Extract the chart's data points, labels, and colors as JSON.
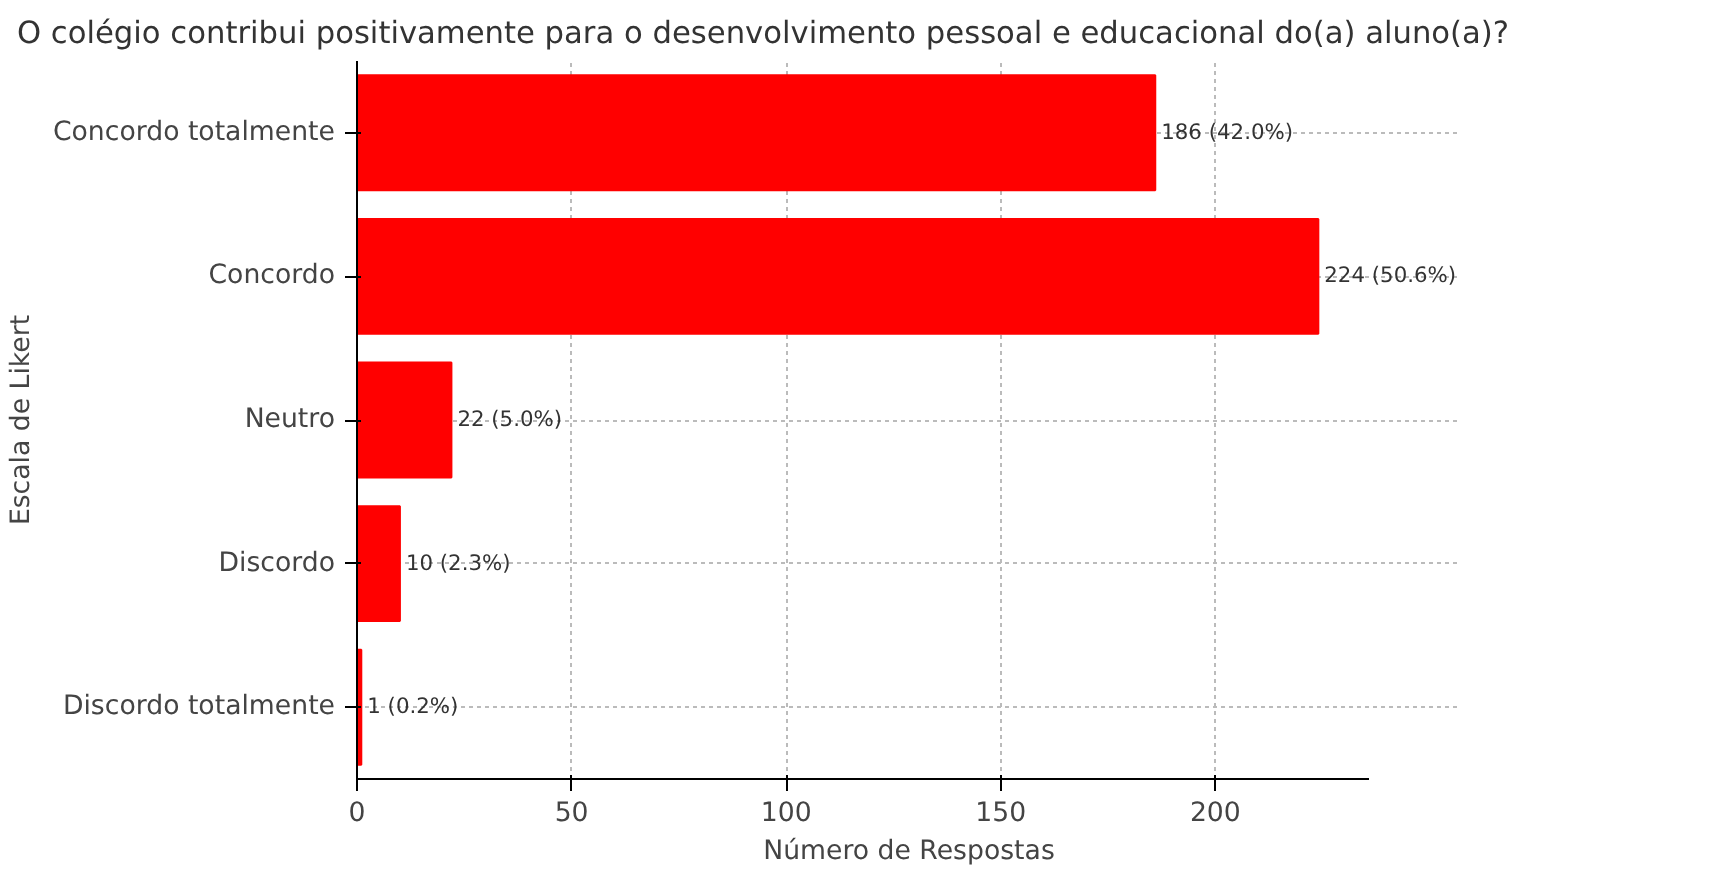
{
  "chart_data": {
    "type": "bar",
    "orientation": "horizontal",
    "title": "O colégio contribui positivamente para o desenvolvimento pessoal e educacional do(a) aluno(a)?",
    "xlabel": "Número de Respostas",
    "ylabel": "Escala de Likert",
    "categories": [
      "Concordo totalmente",
      "Concordo",
      "Neutro",
      "Discordo",
      "Discordo totalmente"
    ],
    "values": [
      186,
      224,
      22,
      10,
      1
    ],
    "value_labels": [
      "186 (42.0%)",
      "224 (50.6%)",
      "22 (5.0%)",
      "10 (2.3%)",
      "1 (0.2%)"
    ],
    "color": "#ff0000",
    "xlim": [
      0,
      236
    ],
    "xticks": [
      0,
      50,
      100,
      150,
      200
    ],
    "grid": true
  }
}
